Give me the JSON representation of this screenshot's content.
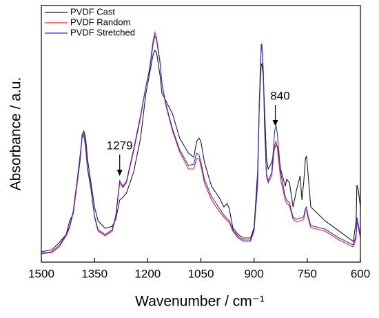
{
  "chart_data": {
    "type": "line",
    "x_label": "Wavenumber / cm⁻¹",
    "y_label": "Absorbance / a.u.",
    "x": [
      1500,
      1470,
      1450,
      1430,
      1420,
      1410,
      1400,
      1390,
      1385,
      1380,
      1375,
      1370,
      1360,
      1350,
      1340,
      1320,
      1300,
      1290,
      1279,
      1270,
      1260,
      1240,
      1220,
      1205,
      1195,
      1185,
      1180,
      1175,
      1165,
      1160,
      1150,
      1130,
      1110,
      1085,
      1070,
      1062,
      1055,
      1050,
      1040,
      1020,
      1000,
      985,
      976,
      970,
      960,
      945,
      930,
      910,
      900,
      890,
      885,
      880,
      878,
      874,
      870,
      865,
      860,
      850,
      842,
      838,
      834,
      825,
      812,
      808,
      800,
      790,
      780,
      770,
      765,
      760,
      755,
      752,
      748,
      740,
      700,
      660,
      620,
      612,
      610,
      606,
      600
    ],
    "series": [
      {
        "name": "PVDF Cast",
        "color": "#1a1a1a",
        "values": [
          5,
          8,
          18,
          30,
          50,
          60,
          100,
          140,
          175,
          180,
          170,
          140,
          105,
          70,
          50,
          39,
          42,
          52,
          80,
          84,
          90,
          120,
          170,
          235,
          262,
          290,
          297,
          294,
          260,
          235,
          225,
          205,
          170,
          148,
          142,
          165,
          170,
          165,
          135,
          100,
          85,
          70,
          75,
          68,
          40,
          30,
          25,
          25,
          40,
          120,
          220,
          275,
          278,
          260,
          210,
          140,
          125,
          135,
          155,
          160,
          158,
          125,
          100,
          110,
          105,
          70,
          95,
          115,
          80,
          105,
          140,
          144,
          120,
          70,
          50,
          35,
          20,
          50,
          102,
          95,
          70
        ]
      },
      {
        "name": "PVDF Random",
        "color": "#e8202a",
        "values": [
          2,
          4,
          12,
          28,
          40,
          62,
          100,
          145,
          170,
          173,
          155,
          125,
          95,
          55,
          35,
          28,
          35,
          55,
          105,
          98,
          105,
          150,
          200,
          245,
          270,
          310,
          323,
          315,
          280,
          250,
          220,
          180,
          150,
          125,
          125,
          140,
          140,
          130,
          105,
          80,
          65,
          55,
          50,
          48,
          35,
          25,
          20,
          20,
          35,
          100,
          220,
          300,
          302,
          265,
          180,
          115,
          105,
          115,
          160,
          165,
          155,
          110,
          80,
          75,
          72,
          52,
          48,
          50,
          50,
          52,
          65,
          66,
          55,
          40,
          35,
          22,
          12,
          25,
          50,
          40,
          25
        ]
      },
      {
        "name": "PVDF Stretched",
        "color": "#2c2cdc",
        "values": [
          3,
          5,
          14,
          30,
          42,
          64,
          105,
          148,
          172,
          176,
          158,
          128,
          97,
          57,
          37,
          30,
          37,
          58,
          108,
          100,
          107,
          153,
          203,
          245,
          268,
          305,
          318,
          312,
          278,
          250,
          222,
          183,
          153,
          130,
          132,
          148,
          145,
          135,
          110,
          85,
          70,
          58,
          53,
          50,
          37,
          27,
          22,
          22,
          37,
          105,
          225,
          305,
          306,
          270,
          185,
          118,
          108,
          120,
          180,
          188,
          175,
          120,
          85,
          80,
          76,
          55,
          52,
          54,
          54,
          56,
          68,
          70,
          58,
          43,
          38,
          25,
          15,
          30,
          55,
          45,
          28
        ]
      }
    ],
    "xlim": [
      1500,
      600
    ],
    "xticks": [
      1500,
      1350,
      1200,
      1050,
      900,
      750,
      600
    ],
    "ylim": [
      -10,
      362
    ],
    "legend": "upper left",
    "annotations": [
      {
        "text": "1279",
        "x": 1279
      },
      {
        "text": "840",
        "x": 840
      }
    ]
  }
}
